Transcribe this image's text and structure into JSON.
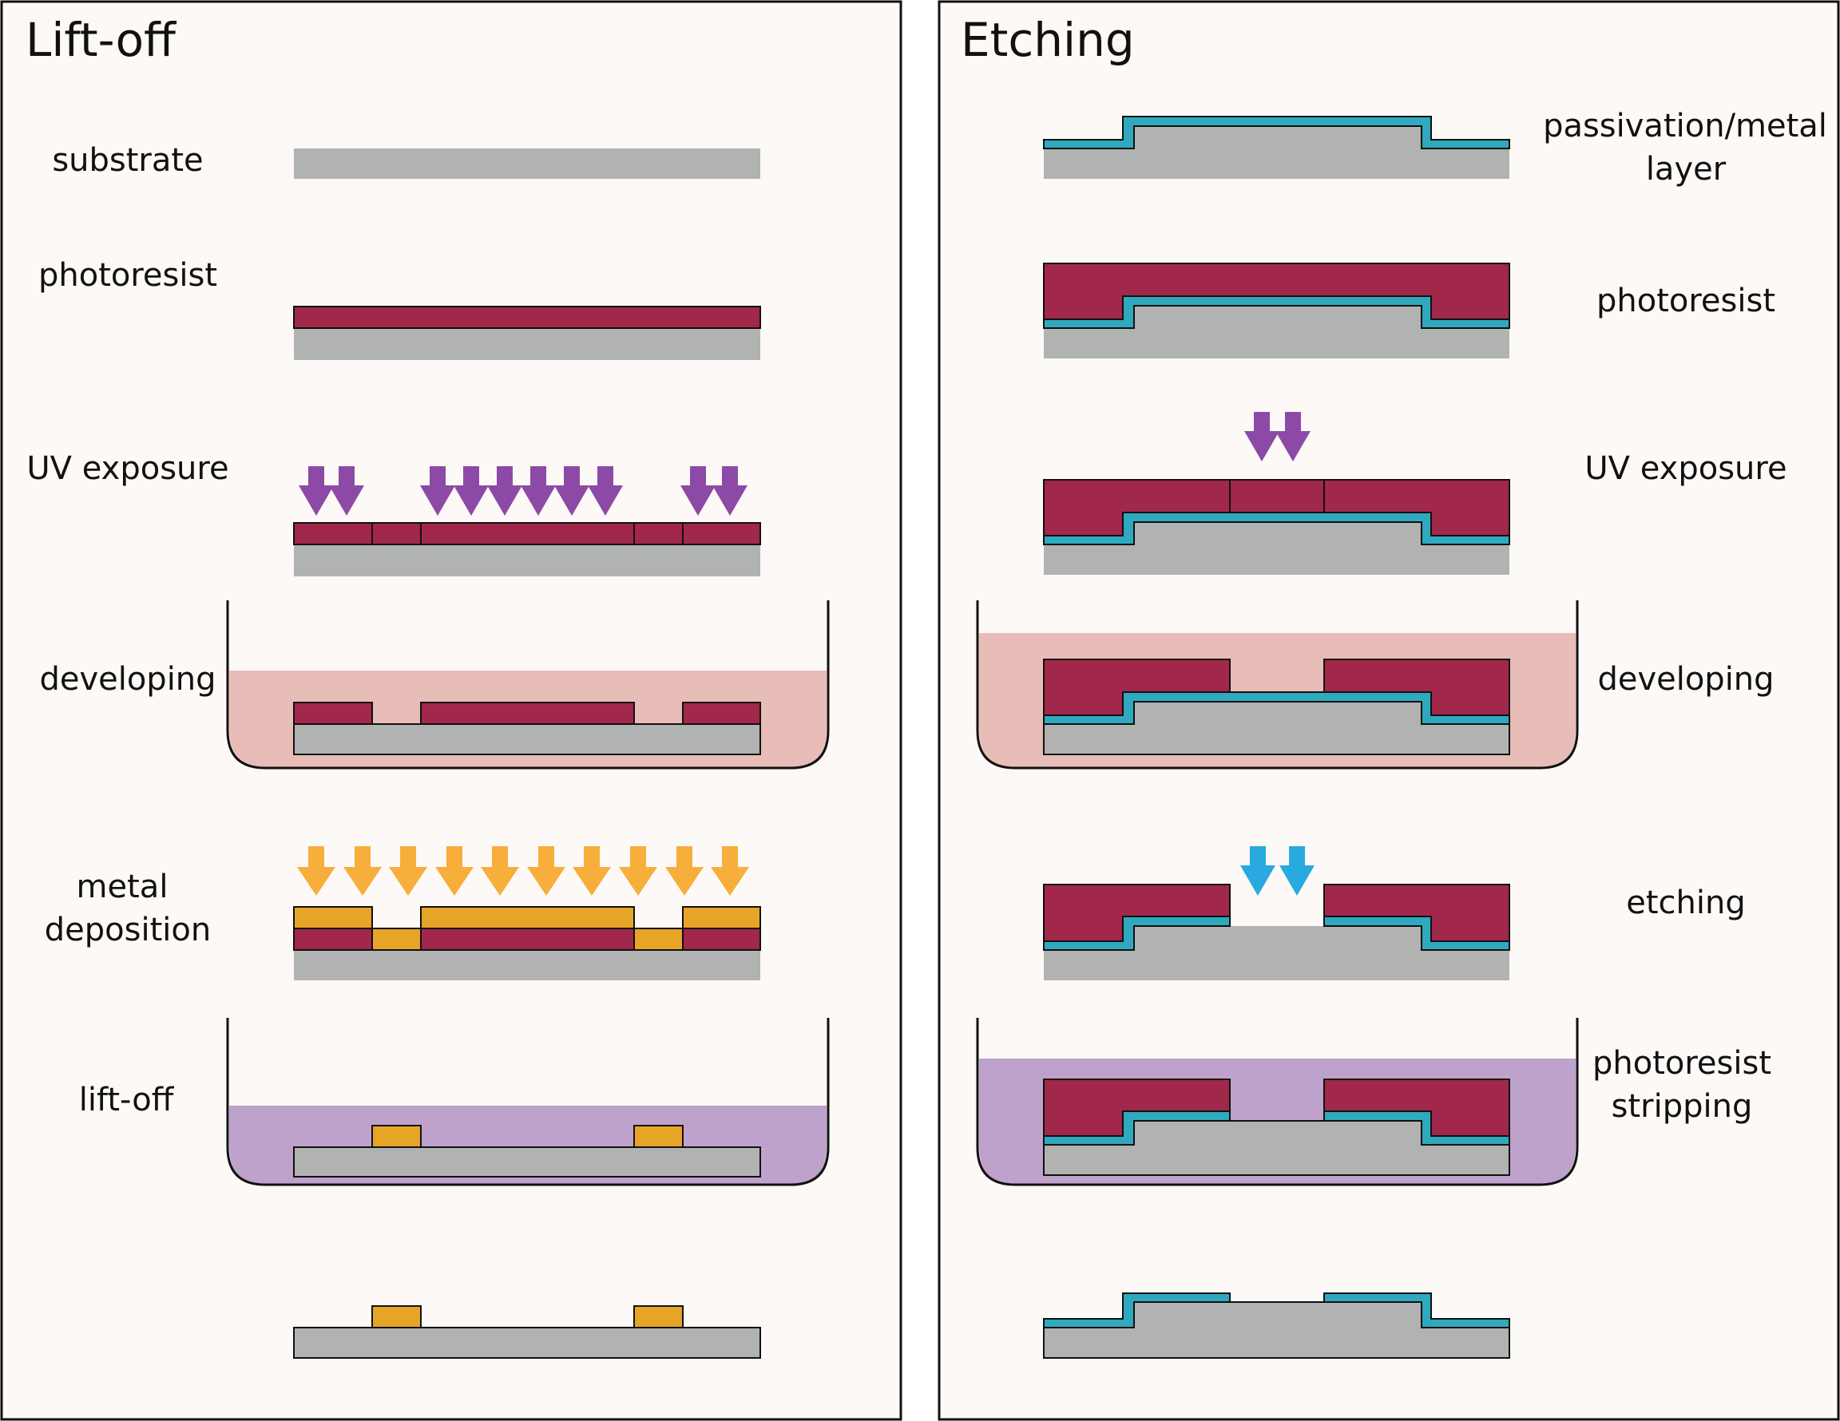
{
  "colors": {
    "background": "#fdf9f6",
    "substrate": "#b1b2b2",
    "photoresist": "#a1284a",
    "metal": "#e6a526",
    "passivation": "#2ea9be",
    "uv_arrow": "#8c4aa6",
    "metal_arrow": "#f7ae3b",
    "etch_arrow": "#28a9e0",
    "developer_bath": "#e8bcb7",
    "stripper_bath": "#bea2cc",
    "outline": "#111111"
  },
  "liftoff": {
    "title": "Lift-off",
    "steps": [
      {
        "label": "substrate"
      },
      {
        "label": "photoresist"
      },
      {
        "label": "UV exposure"
      },
      {
        "label": "developing"
      },
      {
        "label_line1": "metal",
        "label_line2": "deposition"
      },
      {
        "label": "lift-off"
      },
      {
        "label": ""
      }
    ]
  },
  "etching": {
    "title": "Etching",
    "steps": [
      {
        "label_line1": "passivation/metal",
        "label_line2": "layer"
      },
      {
        "label": "photoresist"
      },
      {
        "label": "UV exposure"
      },
      {
        "label": "developing"
      },
      {
        "label": "etching"
      },
      {
        "label_line1": "photoresist",
        "label_line2": "stripping"
      },
      {
        "label": ""
      }
    ]
  }
}
